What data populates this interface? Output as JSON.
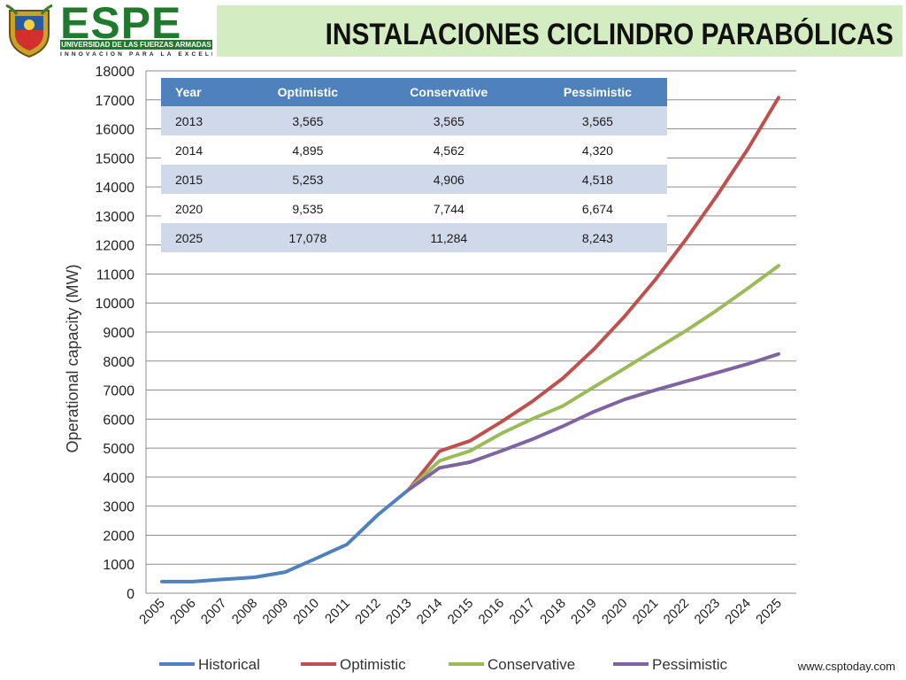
{
  "header": {
    "logo": {
      "brand": "ESPE",
      "university": "UNIVERSIDAD DE LAS FUERZAS ARMADAS",
      "motto": "INNOVACIÓN PARA LA EXCELENCIA",
      "shield_icon": "university-shield-icon"
    },
    "title": "INSTALACIONES CICLINDRO PARABÓLICAS"
  },
  "table": {
    "headers": [
      "Year",
      "Optimistic",
      "Conservative",
      "Pessimistic"
    ],
    "rows": [
      [
        "2013",
        "3,565",
        "3,565",
        "3,565"
      ],
      [
        "2014",
        "4,895",
        "4,562",
        "4,320"
      ],
      [
        "2015",
        "5,253",
        "4,906",
        "4,518"
      ],
      [
        "2020",
        "9,535",
        "7,744",
        "6,674"
      ],
      [
        "2025",
        "17,078",
        "11,284",
        "8,243"
      ]
    ]
  },
  "source": "www.csptoday.com",
  "colors": {
    "title_band": "#d4ecc1",
    "table_header": "#4f81bd",
    "table_band": "#d0d9ea",
    "brand_green": "#1f7a2e"
  },
  "chart_data": {
    "type": "line",
    "ylabel": "Operational capacity (MW)",
    "xlabel": "",
    "ylim": [
      0,
      18000
    ],
    "yticks": [
      0,
      1000,
      2000,
      3000,
      4000,
      5000,
      6000,
      7000,
      8000,
      9000,
      10000,
      11000,
      12000,
      13000,
      14000,
      15000,
      16000,
      17000,
      18000
    ],
    "categories": [
      "2005",
      "2006",
      "2007",
      "2008",
      "2009",
      "2010",
      "2011",
      "2012",
      "2013",
      "2014",
      "2015",
      "2016",
      "2017",
      "2018",
      "2019",
      "2020",
      "2021",
      "2022",
      "2023",
      "2024",
      "2025"
    ],
    "grid": true,
    "legend_position": "bottom",
    "series": [
      {
        "name": "Historical",
        "color": "#4f81bd",
        "values": [
          400,
          400,
          480,
          550,
          730,
          1200,
          1680,
          2700,
          3565,
          null,
          null,
          null,
          null,
          null,
          null,
          null,
          null,
          null,
          null,
          null,
          null
        ]
      },
      {
        "name": "Optimistic",
        "color": "#c0504d",
        "values": [
          null,
          null,
          null,
          null,
          null,
          null,
          null,
          null,
          3565,
          4895,
          5253,
          5900,
          6600,
          7400,
          8400,
          9535,
          10800,
          12200,
          13700,
          15300,
          17078
        ]
      },
      {
        "name": "Conservative",
        "color": "#9bbb59",
        "values": [
          null,
          null,
          null,
          null,
          null,
          null,
          null,
          null,
          3565,
          4562,
          4906,
          5500,
          6000,
          6450,
          7100,
          7744,
          8400,
          9050,
          9750,
          10500,
          11284
        ]
      },
      {
        "name": "Pessimistic",
        "color": "#8064a2",
        "values": [
          null,
          null,
          null,
          null,
          null,
          null,
          null,
          null,
          3565,
          4320,
          4518,
          4900,
          5300,
          5750,
          6250,
          6674,
          7000,
          7300,
          7600,
          7900,
          8243
        ]
      }
    ]
  }
}
